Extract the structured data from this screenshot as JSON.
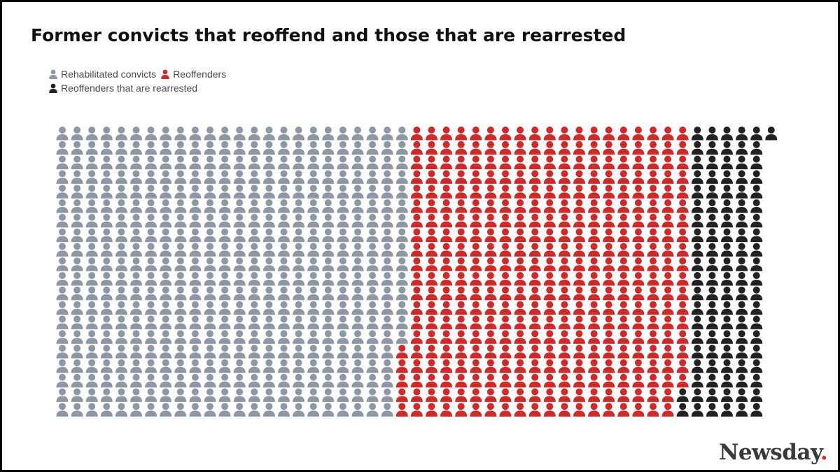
{
  "title": "Former convicts that reoffend and those that are rearrested",
  "logo": {
    "text": "Newsday",
    "dot": "."
  },
  "legend": [
    {
      "label": "Rehabilitated convicts",
      "color": "#8e97a4",
      "icon": "person-icon"
    },
    {
      "label": "Reoffenders",
      "color": "#d12828",
      "icon": "person-icon"
    },
    {
      "label": "Reoffenders that are rearrested",
      "color": "#222222",
      "icon": "person-icon"
    }
  ],
  "chart_data": {
    "type": "waffle",
    "title": "Former convicts that reoffend and those that are rearrested",
    "unit_icon": "person-icon",
    "series": [
      {
        "name": "Rehabilitated convicts",
        "value": 475,
        "color": "#8e97a4"
      },
      {
        "name": "Reoffenders",
        "value": 383,
        "color": "#d12828"
      },
      {
        "name": "Reoffenders that are rearrested",
        "value": 103,
        "color": "#222222"
      }
    ],
    "total": 961,
    "legend_position": "top-left"
  }
}
